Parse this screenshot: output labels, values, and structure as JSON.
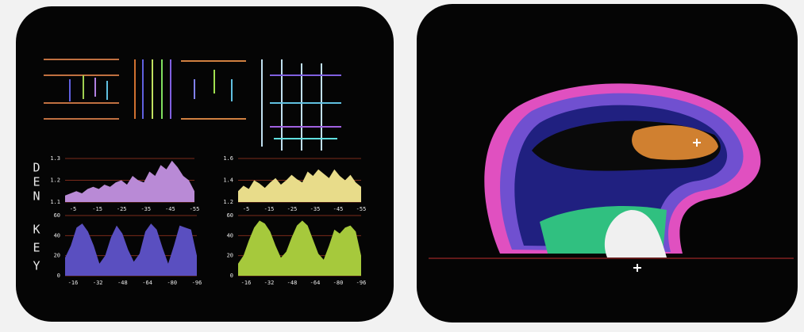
{
  "left_screen": {
    "side_labels": [
      {
        "letters": [
          "D",
          "E",
          "N"
        ]
      },
      {
        "letters": [
          "K",
          "E",
          "Y"
        ]
      }
    ],
    "plots": [
      {
        "color": "#b98ad6",
        "ylim": [
          1.1,
          1.3
        ],
        "yticks": [
          1.3,
          1.2,
          1.1
        ],
        "xlabels": [
          "-5",
          "-15",
          "-25",
          "-35",
          "-45",
          "-55"
        ],
        "values": [
          1.13,
          1.14,
          1.15,
          1.14,
          1.16,
          1.17,
          1.16,
          1.18,
          1.17,
          1.19,
          1.2,
          1.18,
          1.22,
          1.2,
          1.19,
          1.24,
          1.22,
          1.27,
          1.25,
          1.29,
          1.26,
          1.22,
          1.2,
          1.15
        ]
      },
      {
        "color": "#e8dc8a",
        "ylim": [
          1.2,
          1.6
        ],
        "yticks": [
          1.6,
          1.4,
          1.2
        ],
        "xlabels": [
          "-5",
          "-15",
          "-25",
          "-35",
          "-45",
          "-55"
        ],
        "values": [
          1.3,
          1.35,
          1.32,
          1.4,
          1.37,
          1.33,
          1.38,
          1.42,
          1.36,
          1.4,
          1.45,
          1.41,
          1.38,
          1.48,
          1.44,
          1.5,
          1.46,
          1.42,
          1.5,
          1.44,
          1.4,
          1.45,
          1.38,
          1.34
        ]
      },
      {
        "color": "#5a4fc0",
        "ylim": [
          0,
          60
        ],
        "yticks": [
          60,
          40,
          20,
          0
        ],
        "xlabels": [
          "-16",
          "-32",
          "-48",
          "-64",
          "-80",
          "-96"
        ],
        "values": [
          18,
          30,
          48,
          52,
          44,
          30,
          12,
          20,
          38,
          50,
          42,
          26,
          14,
          22,
          44,
          52,
          46,
          28,
          12,
          30,
          50,
          48,
          46,
          20
        ]
      },
      {
        "color": "#a6c93c",
        "ylim": [
          0,
          60
        ],
        "yticks": [
          60,
          40,
          20,
          0
        ],
        "xlabels": [
          "-16",
          "-32",
          "-48",
          "-64",
          "-80",
          "-96"
        ],
        "values": [
          12,
          20,
          35,
          48,
          55,
          52,
          44,
          30,
          18,
          24,
          38,
          50,
          55,
          50,
          36,
          22,
          16,
          30,
          46,
          42,
          48,
          50,
          44,
          20
        ]
      }
    ]
  }
}
